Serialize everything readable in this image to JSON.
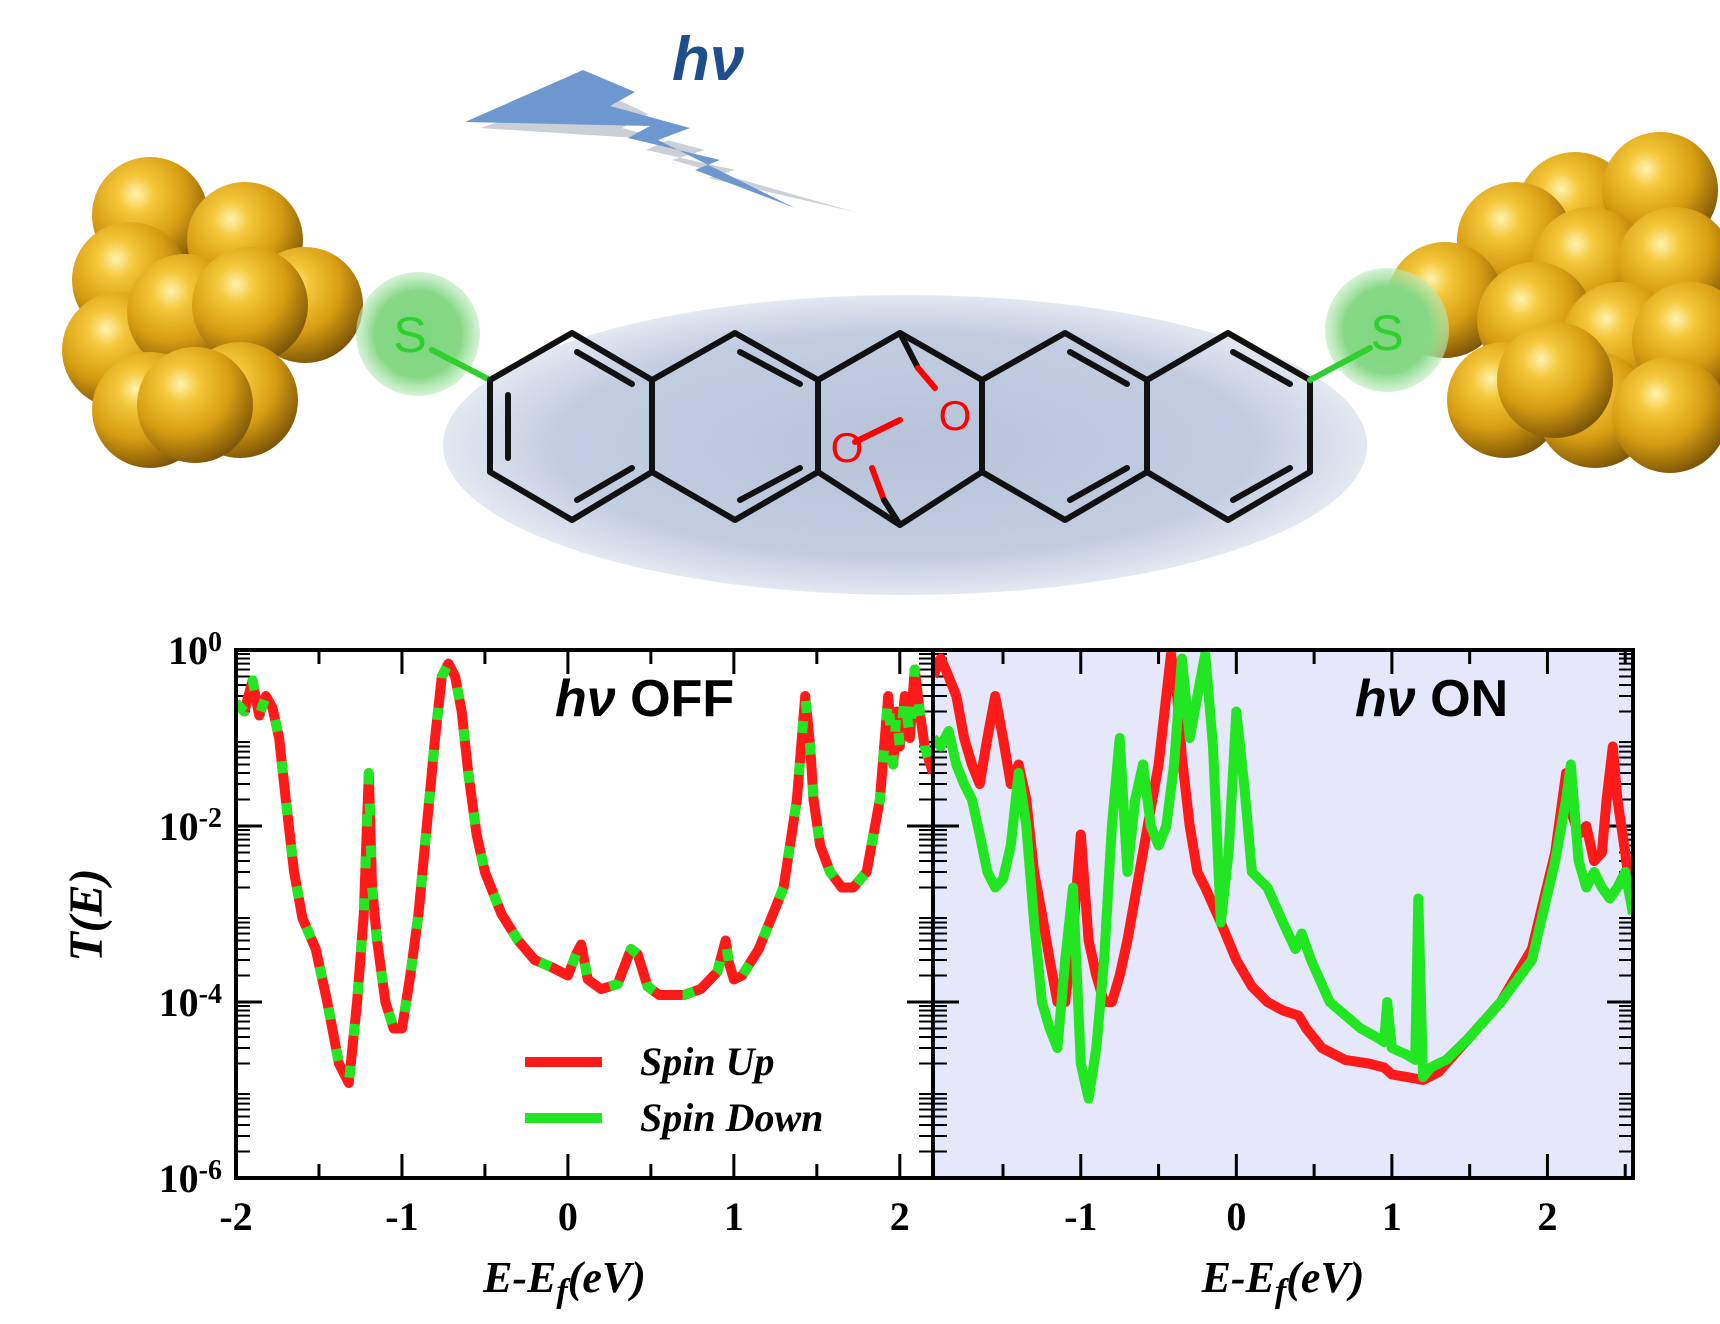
{
  "illustration": {
    "light_label": "hν",
    "anchor_left": "S",
    "anchor_right": "S",
    "oxygen_1": "O",
    "oxygen_2": "O",
    "colors": {
      "gold": "#d9a514",
      "sulfur": "#2fd12f",
      "oxygen": "#ff0000",
      "bond": "#111111",
      "ellipse": "#c2cde0",
      "lightning": "#5b8ac7",
      "light_label": "#1f4e8c"
    }
  },
  "chart_data": [
    {
      "type": "line",
      "panel_label_italic": "hν",
      "panel_label_text": " OFF",
      "xlabel": "E-E",
      "xlabel_sub": "f",
      "xlabel_tail": "(eV)",
      "ylabel": "T(E)",
      "y_scale": "log",
      "xlim": [
        -2,
        2.2
      ],
      "ylim": [
        1e-06,
        1
      ],
      "x_ticks": [
        -2,
        -1,
        0,
        1,
        2
      ],
      "x_tick_labels": [
        "-2",
        "-1",
        "0",
        "1",
        "2"
      ],
      "y_ticks": [
        1,
        0.01,
        0.0001,
        1e-06
      ],
      "y_tick_base": "10",
      "y_tick_exponents": [
        "0",
        "-2",
        "-4",
        "-6"
      ],
      "legend": {
        "placement": "bottom-center"
      },
      "background": "#ffffff",
      "series": [
        {
          "name": "Spin Up",
          "color": "#ff1a1a",
          "style": "solid",
          "x": [
            -2.0,
            -1.95,
            -1.9,
            -1.86,
            -1.82,
            -1.78,
            -1.74,
            -1.7,
            -1.65,
            -1.6,
            -1.52,
            -1.45,
            -1.38,
            -1.32,
            -1.27,
            -1.23,
            -1.2,
            -1.18,
            -1.15,
            -1.1,
            -1.05,
            -1.0,
            -0.95,
            -0.9,
            -0.85,
            -0.8,
            -0.76,
            -0.72,
            -0.68,
            -0.64,
            -0.6,
            -0.55,
            -0.5,
            -0.4,
            -0.3,
            -0.2,
            -0.1,
            0.0,
            0.05,
            0.08,
            0.12,
            0.2,
            0.3,
            0.38,
            0.42,
            0.48,
            0.55,
            0.7,
            0.8,
            0.9,
            0.95,
            0.97,
            1.0,
            1.05,
            1.15,
            1.3,
            1.38,
            1.43,
            1.46,
            1.48,
            1.52,
            1.58,
            1.65,
            1.72,
            1.8,
            1.88,
            1.93,
            1.96,
            1.98,
            2.0,
            2.03,
            2.06,
            2.09,
            2.12,
            2.15,
            2.2
          ],
          "y": [
            0.25,
            0.2,
            0.45,
            0.18,
            0.3,
            0.22,
            0.1,
            0.02,
            0.003,
            0.0009,
            0.0004,
            0.0001,
            2e-05,
            1.2e-05,
            0.0001,
            0.001,
            0.04,
            0.002,
            0.0005,
            0.0001,
            5e-05,
            5e-05,
            0.0002,
            0.001,
            0.01,
            0.1,
            0.5,
            0.7,
            0.5,
            0.2,
            0.04,
            0.008,
            0.003,
            0.001,
            0.0005,
            0.0003,
            0.00025,
            0.0002,
            0.00035,
            0.00045,
            0.00018,
            0.00014,
            0.00016,
            0.0004,
            0.00035,
            0.00015,
            0.00012,
            0.00012,
            0.00014,
            0.00022,
            0.0005,
            0.00028,
            0.00018,
            0.0002,
            0.0004,
            0.002,
            0.02,
            0.3,
            0.08,
            0.02,
            0.006,
            0.003,
            0.002,
            0.002,
            0.003,
            0.02,
            0.3,
            0.05,
            0.2,
            0.08,
            0.3,
            0.1,
            0.6,
            0.2,
            0.08,
            0.04
          ]
        },
        {
          "name": "Spin Down",
          "color": "#22e622",
          "style": "dashed",
          "x": [
            -2.0,
            -1.95,
            -1.9,
            -1.86,
            -1.82,
            -1.78,
            -1.74,
            -1.7,
            -1.65,
            -1.6,
            -1.52,
            -1.45,
            -1.38,
            -1.32,
            -1.27,
            -1.23,
            -1.2,
            -1.18,
            -1.15,
            -1.1,
            -1.05,
            -1.0,
            -0.95,
            -0.9,
            -0.85,
            -0.8,
            -0.76,
            -0.72,
            -0.68,
            -0.64,
            -0.6,
            -0.55,
            -0.5,
            -0.4,
            -0.3,
            -0.2,
            -0.1,
            0.0,
            0.05,
            0.08,
            0.12,
            0.2,
            0.3,
            0.38,
            0.42,
            0.48,
            0.55,
            0.7,
            0.8,
            0.9,
            0.95,
            0.97,
            1.0,
            1.05,
            1.15,
            1.3,
            1.38,
            1.43,
            1.46,
            1.48,
            1.52,
            1.58,
            1.65,
            1.72,
            1.8,
            1.88,
            1.93,
            1.96,
            1.98,
            2.0,
            2.03,
            2.06,
            2.09,
            2.12,
            2.15,
            2.2
          ],
          "y": [
            0.25,
            0.2,
            0.45,
            0.18,
            0.3,
            0.22,
            0.1,
            0.02,
            0.003,
            0.0009,
            0.0004,
            0.0001,
            2e-05,
            1.2e-05,
            0.0001,
            0.001,
            0.04,
            0.002,
            0.0005,
            0.0001,
            5e-05,
            5e-05,
            0.0002,
            0.001,
            0.01,
            0.1,
            0.5,
            0.7,
            0.5,
            0.2,
            0.04,
            0.008,
            0.003,
            0.001,
            0.0005,
            0.0003,
            0.00025,
            0.0002,
            0.00035,
            0.00045,
            0.00018,
            0.00014,
            0.00016,
            0.0004,
            0.00035,
            0.00015,
            0.00012,
            0.00012,
            0.00014,
            0.00022,
            0.0005,
            0.00028,
            0.00018,
            0.0002,
            0.0004,
            0.002,
            0.02,
            0.3,
            0.08,
            0.02,
            0.006,
            0.003,
            0.002,
            0.002,
            0.003,
            0.02,
            0.3,
            0.05,
            0.2,
            0.08,
            0.3,
            0.1,
            0.6,
            0.2,
            0.08,
            0.04
          ]
        }
      ]
    },
    {
      "type": "line",
      "panel_label_italic": "hν",
      "panel_label_text": " ON",
      "xlabel": "E-E",
      "xlabel_sub": "f",
      "xlabel_tail": "(eV)",
      "y_scale": "log",
      "xlim": [
        -1.95,
        2.55
      ],
      "ylim": [
        1e-06,
        1
      ],
      "x_ticks": [
        -1,
        0,
        1,
        2
      ],
      "x_tick_labels": [
        "-1",
        "0",
        "1",
        "2"
      ],
      "background": "#e4e8fa",
      "series": [
        {
          "name": "Spin Up",
          "color": "#ff1a1a",
          "style": "solid",
          "x": [
            -1.95,
            -1.9,
            -1.85,
            -1.8,
            -1.75,
            -1.7,
            -1.65,
            -1.6,
            -1.55,
            -1.5,
            -1.45,
            -1.4,
            -1.35,
            -1.3,
            -1.25,
            -1.2,
            -1.15,
            -1.1,
            -1.05,
            -1.0,
            -0.95,
            -0.9,
            -0.85,
            -0.8,
            -0.75,
            -0.7,
            -0.6,
            -0.5,
            -0.42,
            -0.38,
            -0.35,
            -0.3,
            -0.25,
            -0.2,
            -0.1,
            0.0,
            0.1,
            0.2,
            0.3,
            0.4,
            0.45,
            0.55,
            0.7,
            0.85,
            0.95,
            1.0,
            1.1,
            1.2,
            1.3,
            1.5,
            1.7,
            1.9,
            2.05,
            2.12,
            2.15,
            2.2,
            2.25,
            2.3,
            2.35,
            2.38,
            2.42,
            2.45,
            2.5,
            2.55
          ],
          "y": [
            0.5,
            0.8,
            0.5,
            0.3,
            0.1,
            0.05,
            0.03,
            0.1,
            0.3,
            0.1,
            0.03,
            0.05,
            0.02,
            0.003,
            0.001,
            0.0003,
            0.0001,
            0.0001,
            0.0006,
            0.008,
            0.0005,
            0.0002,
            0.0001,
            0.0001,
            0.0002,
            0.0005,
            0.005,
            0.05,
            0.9,
            0.3,
            0.06,
            0.01,
            0.003,
            0.002,
            0.0008,
            0.0003,
            0.00015,
            0.0001,
            8e-05,
            7e-05,
            5e-05,
            3e-05,
            2.2e-05,
            2e-05,
            1.8e-05,
            1.5e-05,
            1.4e-05,
            1.3e-05,
            1.6e-05,
            4e-05,
            0.0001,
            0.0004,
            0.005,
            0.04,
            0.015,
            0.008,
            0.01,
            0.004,
            0.005,
            0.02,
            0.08,
            0.02,
            0.005,
            0.001
          ]
        },
        {
          "name": "Spin Down",
          "color": "#22e622",
          "style": "solid",
          "x": [
            -1.95,
            -1.9,
            -1.85,
            -1.8,
            -1.75,
            -1.7,
            -1.65,
            -1.6,
            -1.55,
            -1.5,
            -1.45,
            -1.4,
            -1.35,
            -1.3,
            -1.25,
            -1.2,
            -1.15,
            -1.1,
            -1.05,
            -1.0,
            -0.95,
            -0.9,
            -0.85,
            -0.8,
            -0.75,
            -0.7,
            -0.65,
            -0.6,
            -0.55,
            -0.5,
            -0.45,
            -0.4,
            -0.35,
            -0.3,
            -0.25,
            -0.2,
            -0.15,
            -0.1,
            -0.05,
            0.0,
            0.05,
            0.1,
            0.2,
            0.3,
            0.38,
            0.42,
            0.48,
            0.6,
            0.8,
            0.9,
            0.95,
            0.97,
            1.0,
            1.1,
            1.15,
            1.17,
            1.2,
            1.25,
            1.3,
            1.35,
            1.5,
            1.7,
            1.9,
            2.05,
            2.12,
            2.15,
            2.2,
            2.25,
            2.3,
            2.35,
            2.4,
            2.45,
            2.5,
            2.55
          ],
          "y": [
            0.1,
            0.08,
            0.12,
            0.05,
            0.03,
            0.02,
            0.008,
            0.003,
            0.002,
            0.0025,
            0.006,
            0.04,
            0.01,
            0.0008,
            0.0001,
            5e-05,
            3e-05,
            0.0003,
            0.002,
            2e-05,
            8e-06,
            3e-05,
            0.0003,
            0.01,
            0.1,
            0.003,
            0.02,
            0.05,
            0.01,
            0.006,
            0.01,
            0.05,
            0.8,
            0.1,
            0.3,
            0.9,
            0.08,
            0.0008,
            0.005,
            0.2,
            0.03,
            0.003,
            0.002,
            0.0008,
            0.0004,
            0.0006,
            0.0003,
            0.0001,
            5e-05,
            4e-05,
            3.5e-05,
            0.0001,
            3e-05,
            2.5e-05,
            2.2e-05,
            0.0015,
            1.4e-05,
            1.8e-05,
            2e-05,
            2.2e-05,
            4e-05,
            0.0001,
            0.0003,
            0.004,
            0.02,
            0.05,
            0.004,
            0.002,
            0.003,
            0.002,
            0.0015,
            0.002,
            0.003,
            0.001
          ]
        }
      ]
    }
  ]
}
